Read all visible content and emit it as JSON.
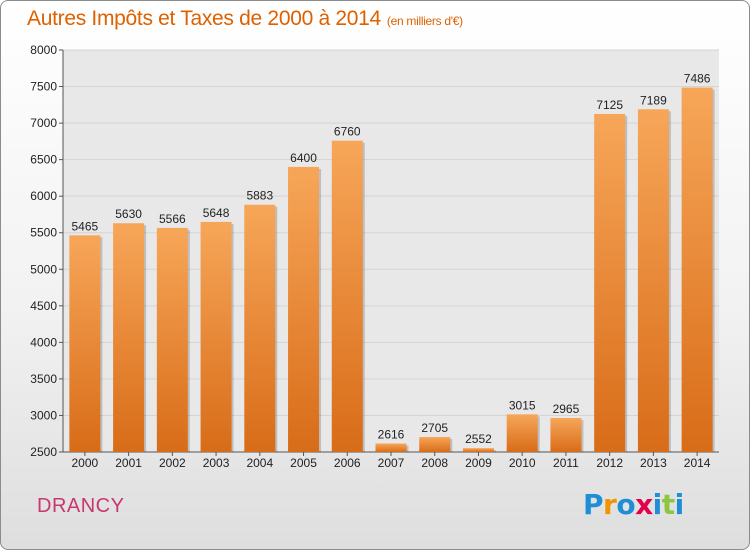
{
  "header": {
    "title": "Autres Impôts et Taxes de 2000 à 2014",
    "unit": "(en milliers d'€)"
  },
  "footer": {
    "place": "DRANCY",
    "logo_letters": [
      "P",
      "r",
      "o",
      "x",
      "i",
      "t",
      "i"
    ],
    "logo_colors": [
      "#1e8fd6",
      "#f29400",
      "#1e8fd6",
      "#e5004e",
      "#1e8fd6",
      "#8dc63f",
      "#1e8fd6"
    ]
  },
  "colors": {
    "bar_light": "#f7a659",
    "bar_dark": "#d86c18",
    "grid": "#d4d4d4",
    "title": "#dd6100",
    "place": "#c8386f"
  },
  "chart_data": {
    "type": "bar",
    "title": "Autres Impôts et Taxes de 2000 à 2014",
    "subtitle": "(en milliers d'€)",
    "categories": [
      "2000",
      "2001",
      "2002",
      "2003",
      "2004",
      "2005",
      "2006",
      "2007",
      "2008",
      "2009",
      "2010",
      "2011",
      "2012",
      "2013",
      "2014"
    ],
    "values": [
      5465,
      5630,
      5566,
      5648,
      5883,
      6400,
      6760,
      2616,
      2705,
      2552,
      3015,
      2965,
      7125,
      7189,
      7486
    ],
    "ylim": [
      2500,
      8000
    ],
    "yticks": [
      2500,
      3000,
      3500,
      4000,
      4500,
      5000,
      5500,
      6000,
      6500,
      7000,
      7500,
      8000
    ],
    "grid": true,
    "legend": "none"
  }
}
